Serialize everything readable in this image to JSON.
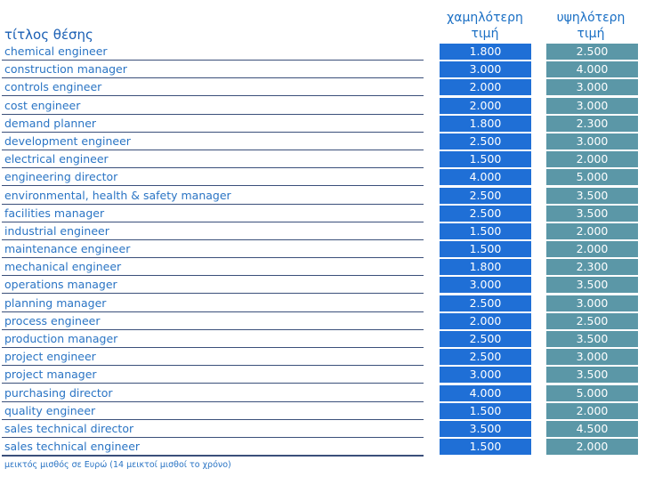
{
  "header": {
    "title_col": "τίτλος θέσης",
    "low_col": [
      "χαμηλότερη",
      "τιμή"
    ],
    "high_col": [
      "υψηλότερη",
      "τιμή"
    ]
  },
  "colors": {
    "low": "#1f6fd6",
    "high": "#5b97a7",
    "text": "#2a74c4"
  },
  "rows": [
    {
      "title": "chemical engineer",
      "low": "1.800",
      "high": "2.500"
    },
    {
      "title": "construction manager",
      "low": "3.000",
      "high": "4.000"
    },
    {
      "title": "controls engineer",
      "low": "2.000",
      "high": "3.000"
    },
    {
      "title": "cost engineer",
      "low": "2.000",
      "high": "3.000"
    },
    {
      "title": "demand planner",
      "low": "1.800",
      "high": "2.300"
    },
    {
      "title": "development engineer",
      "low": "2.500",
      "high": "3.000"
    },
    {
      "title": "electrical engineer",
      "low": "1.500",
      "high": "2.000"
    },
    {
      "title": "engineering director",
      "low": "4.000",
      "high": "5.000"
    },
    {
      "title": "environmental, health & safety manager",
      "low": "2.500",
      "high": "3.500"
    },
    {
      "title": "facilities manager",
      "low": "2.500",
      "high": "3.500"
    },
    {
      "title": "industrial engineer",
      "low": "1.500",
      "high": "2.000"
    },
    {
      "title": "maintenance engineer",
      "low": "1.500",
      "high": "2.000"
    },
    {
      "title": "mechanical engineer",
      "low": "1.800",
      "high": "2.300"
    },
    {
      "title": "operations manager",
      "low": "3.000",
      "high": "3.500"
    },
    {
      "title": "planning manager",
      "low": "2.500",
      "high": "3.000"
    },
    {
      "title": "process engineer",
      "low": "2.000",
      "high": "2.500"
    },
    {
      "title": "production manager",
      "low": "2.500",
      "high": "3.500"
    },
    {
      "title": "project engineer",
      "low": "2.500",
      "high": "3.000"
    },
    {
      "title": "project manager",
      "low": "3.000",
      "high": "3.500"
    },
    {
      "title": "purchasing director",
      "low": "4.000",
      "high": "5.000"
    },
    {
      "title": "quality engineer",
      "low": "1.500",
      "high": "2.000"
    },
    {
      "title": "sales technical director",
      "low": "3.500",
      "high": "4.500"
    },
    {
      "title": "sales technical engineer",
      "low": "1.500",
      "high": "2.000"
    }
  ],
  "footer": "μεικτός μισθός σε Ευρώ (14 μεικτοί μισθοί το χρόνο)"
}
